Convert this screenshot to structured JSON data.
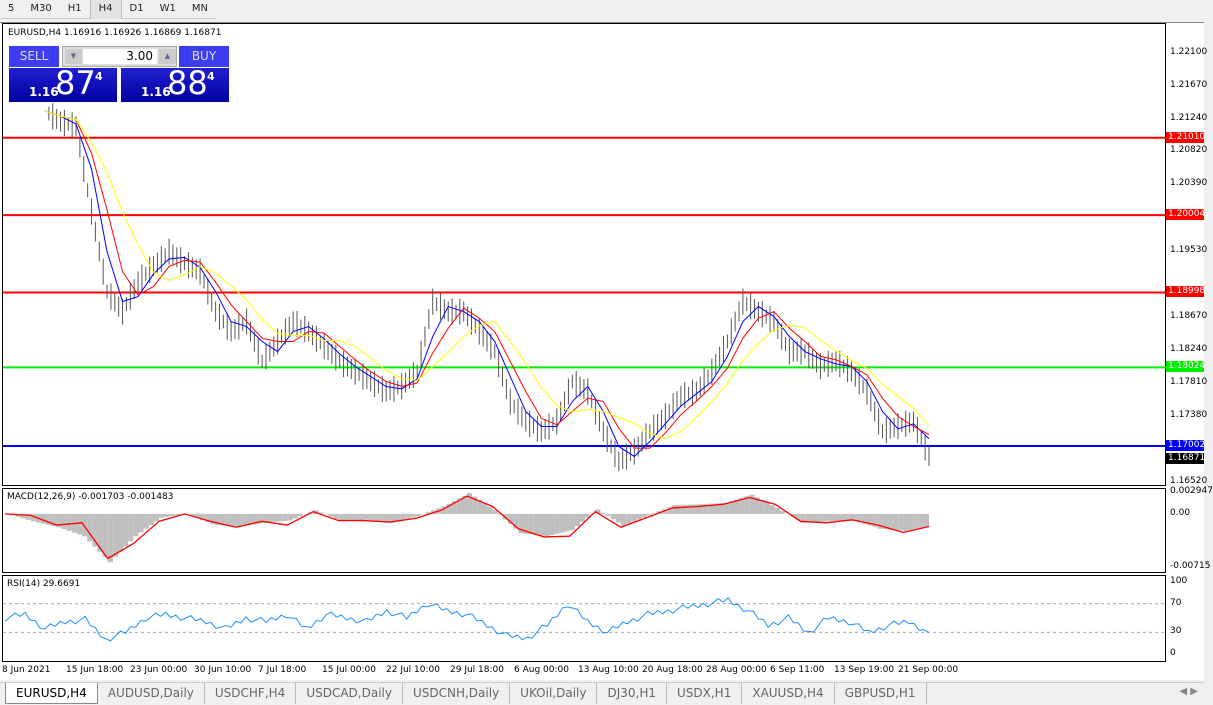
{
  "timeframes": [
    "5",
    "M30",
    "H1",
    "H4",
    "D1",
    "W1",
    "MN"
  ],
  "active_timeframe": "H4",
  "chart": {
    "header": "EURUSD,H4  1.16916 1.16926 1.16869 1.16871",
    "one_click": {
      "sell_label": "SELL",
      "buy_label": "BUY",
      "lot": "3.00",
      "sell_big": "87",
      "sell_small": "1.16",
      "sell_pip": "4",
      "buy_big": "88",
      "buy_small": "1.16",
      "buy_pip": "4"
    },
    "price_axis": [
      "1.22100",
      "1.21670",
      "1.21240",
      "1.20820",
      "1.20390",
      "1.19530",
      "1.18670",
      "1.18240",
      "1.17810",
      "1.17380",
      "1.16520"
    ],
    "levels": [
      {
        "price": "1.21010",
        "color": "#ff0000"
      },
      {
        "price": "1.20004",
        "color": "#ff0000"
      },
      {
        "price": "1.18998",
        "color": "#ff0000"
      },
      {
        "price": "1.18024",
        "color": "#00ee00"
      },
      {
        "price": "1.17002",
        "color": "#0000ff"
      }
    ],
    "current_price": "1.16871",
    "macd_label": "MACD(12,26,9) -0.001703 -0.001483",
    "macd_axis": [
      "0.002947",
      "0.00",
      "-0.00715"
    ],
    "rsi_label": "RSI(14) 29.6691",
    "rsi_axis": [
      "100",
      "70",
      "30",
      "0"
    ],
    "time_axis": [
      "8 Jun 2021",
      "15 Jun 18:00",
      "23 Jun 00:00",
      "30 Jun 10:00",
      "7 Jul 18:00",
      "15 Jul 00:00",
      "22 Jul 10:00",
      "29 Jul 18:00",
      "6 Aug 00:00",
      "13 Aug 10:00",
      "20 Aug 18:00",
      "28 Aug 00:00",
      "6 Sep 11:00",
      "13 Sep 19:00",
      "21 Sep 00:00"
    ]
  },
  "chart_data": {
    "type": "line",
    "close": [
      1.2136,
      1.2122,
      1.2116,
      1.2005,
      1.1901,
      1.1875,
      1.1914,
      1.1934,
      1.1953,
      1.1938,
      1.1927,
      1.1875,
      1.1849,
      1.1862,
      1.181,
      1.1836,
      1.1862,
      1.1849,
      1.183,
      1.181,
      1.1797,
      1.1784,
      1.1771,
      1.1778,
      1.1797,
      1.1888,
      1.1875,
      1.1875,
      1.1849,
      1.1823,
      1.1758,
      1.1732,
      1.1719,
      1.1732,
      1.1784,
      1.1771,
      1.1719,
      1.168,
      1.1693,
      1.1719,
      1.1739,
      1.1765,
      1.1771,
      1.1797,
      1.1836,
      1.1888,
      1.1875,
      1.1862,
      1.1823,
      1.1823,
      1.1804,
      1.181,
      1.1797,
      1.1771,
      1.1719,
      1.1726,
      1.1732,
      1.1687
    ],
    "ylim": [
      1.1652,
      1.221
    ],
    "macd_signal": [
      0,
      -0.0002,
      -0.0015,
      -0.0012,
      -0.006,
      -0.004,
      -0.001,
      0,
      -0.001,
      -0.0018,
      -0.001,
      -0.0015,
      0.0003,
      -0.0009,
      -0.0009,
      -0.0011,
      -0.0006,
      0.0005,
      0.0024,
      0.001,
      -0.002,
      -0.0031,
      -0.003,
      0.0003,
      -0.0018,
      -0.0005,
      0.0008,
      0.001,
      0.0013,
      0.0022,
      0.0013,
      -0.001,
      -0.0012,
      -0.0008,
      -0.0015,
      -0.0025,
      -0.0017
    ],
    "macd_hist": [
      0,
      -0.001,
      -0.0018,
      -0.003,
      -0.0065,
      -0.003,
      -0.0005,
      0,
      -0.0014,
      -0.0018,
      -0.0012,
      -0.0009,
      0.0005,
      -0.001,
      -0.0008,
      -0.0012,
      -0.0003,
      0.001,
      0.0028,
      0.0005,
      -0.0026,
      -0.003,
      -0.0022,
      0.0006,
      -0.0016,
      -0.0002,
      0.0012,
      0.0013,
      0.0015,
      0.0026,
      0.0008,
      -0.0012,
      -0.001,
      -0.0009,
      -0.002,
      -0.0023,
      -0.0017
    ],
    "macd_ylim": [
      -0.00715,
      0.002947
    ],
    "rsi": [
      50,
      55,
      35,
      45,
      48,
      20,
      30,
      50,
      55,
      50,
      45,
      35,
      50,
      45,
      55,
      35,
      55,
      50,
      45,
      60,
      50,
      70,
      60,
      55,
      40,
      25,
      22,
      40,
      70,
      45,
      30,
      45,
      55,
      60,
      65,
      70,
      75,
      60,
      40,
      50,
      30,
      50,
      45,
      30,
      40,
      45,
      30
    ],
    "rsi_levels": [
      70,
      30
    ],
    "colors": {
      "bars": "#000000",
      "ma_fast": "#0000ff",
      "ma_mid": "#ff0000",
      "ma_slow": "#ffff00",
      "histogram": "#c0c0c0",
      "signal": "#ff0000",
      "rsi": "#1e90ff"
    }
  },
  "tabs": [
    "EURUSD,H4",
    "AUDUSD,Daily",
    "USDCHF,H4",
    "USDCAD,Daily",
    "USDCNH,Daily",
    "UKOil,Daily",
    "DJ30,H1",
    "USDX,H1",
    "XAUUSD,H4",
    "GBPUSD,H1"
  ],
  "active_tab": "EURUSD,H4"
}
